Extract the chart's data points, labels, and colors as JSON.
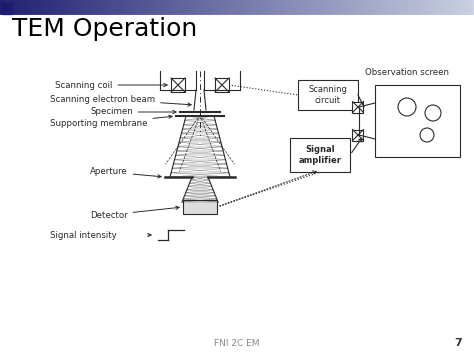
{
  "title": "TEM Operation",
  "footer": "FNI 2C EM",
  "page_number": "7",
  "bg_color": "#ffffff",
  "header_gradient_left": "#1a1a6e",
  "header_gradient_right": "#c8cfe0",
  "title_color": "#000000",
  "title_fontsize": 18,
  "diagram_color": "#2a2a2a",
  "labels": {
    "scanning_coil": "Scanning coil",
    "scanning_electron_beam": "Scanning electron beam",
    "specimen": "Specimen",
    "supporting_membrane": "Supporting membrane",
    "aperture": "Aperture",
    "detector": "Detector",
    "signal_intensity": "Signal intensity",
    "scanning_circuit": "Scanning\ncircuit",
    "signal_amplifier": "Signal\namplifier",
    "observation_screen": "Observation screen"
  }
}
